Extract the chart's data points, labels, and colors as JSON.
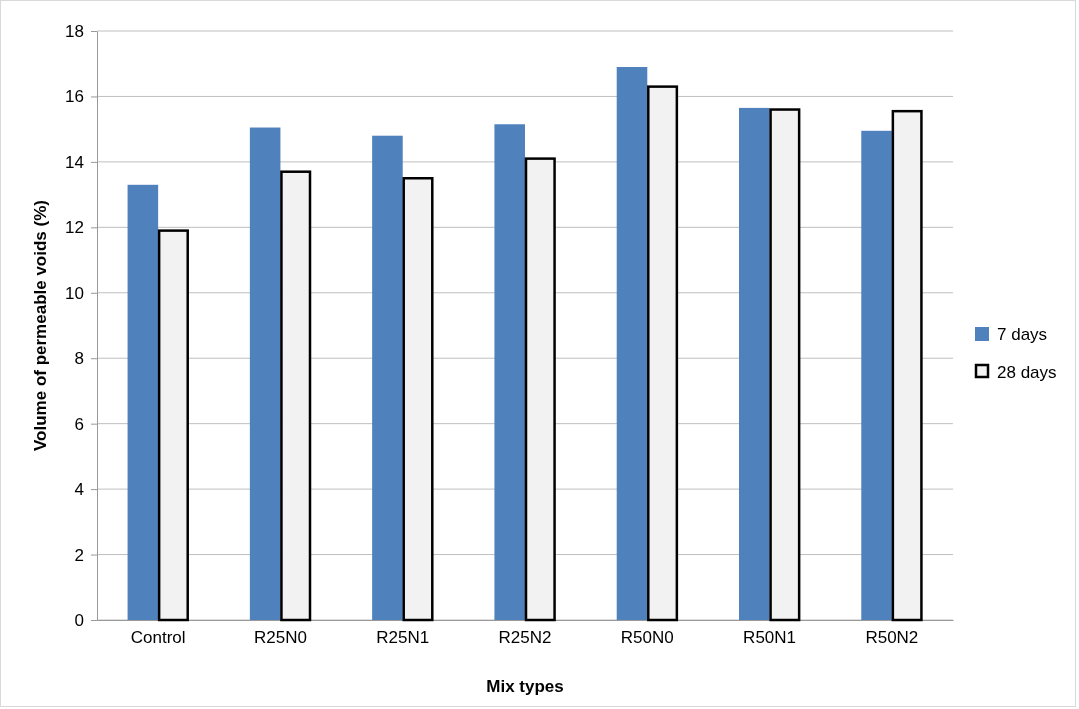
{
  "chart_data": {
    "type": "bar",
    "xlabel": "Mix types",
    "ylabel": "Volume of permeable voids (%)",
    "categories": [
      "Control",
      "R25N0",
      "R25N1",
      "R25N2",
      "R50N0",
      "R50N1",
      "R50N2"
    ],
    "series": [
      {
        "name": "7 days",
        "color": "#4f81bd",
        "values": [
          13.3,
          15.05,
          14.8,
          15.15,
          16.9,
          15.65,
          14.95
        ]
      },
      {
        "name": "28 days",
        "color": "#f2f2f2",
        "values": [
          11.9,
          13.7,
          13.5,
          14.1,
          16.3,
          15.6,
          15.55
        ]
      }
    ],
    "ylim": [
      0,
      18
    ],
    "yticks": [
      0,
      2,
      4,
      6,
      8,
      10,
      12,
      14,
      16,
      18
    ],
    "grid": "y",
    "legend": "right"
  }
}
